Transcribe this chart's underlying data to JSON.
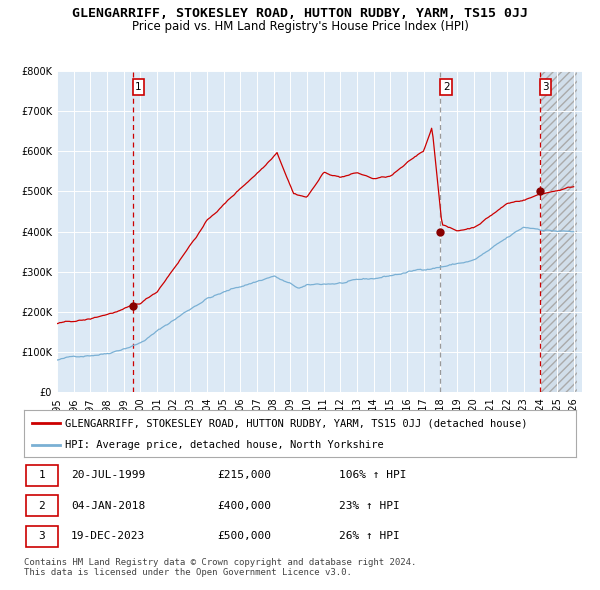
{
  "title": "GLENGARRIFF, STOKESLEY ROAD, HUTTON RUDBY, YARM, TS15 0JJ",
  "subtitle": "Price paid vs. HM Land Registry's House Price Index (HPI)",
  "ylim": [
    0,
    800000
  ],
  "yticks": [
    0,
    100000,
    200000,
    300000,
    400000,
    500000,
    600000,
    700000,
    800000
  ],
  "hpi_color": "#7ab0d4",
  "price_color": "#cc0000",
  "marker_color": "#880000",
  "bg_color": "#dce9f5",
  "grid_color": "#ffffff",
  "vline_color_red": "#cc0000",
  "vline_color_gray": "#999999",
  "sale_year_nums": [
    1999.54,
    2018.01,
    2023.96
  ],
  "sale_prices": [
    215000,
    400000,
    500000
  ],
  "sale_labels": [
    "1",
    "2",
    "3"
  ],
  "legend_label_red": "GLENGARRIFF, STOKESLEY ROAD, HUTTON RUDBY, YARM, TS15 0JJ (detached house)",
  "legend_label_blue": "HPI: Average price, detached house, North Yorkshire",
  "table_rows": [
    [
      "1",
      "20-JUL-1999",
      "£215,000",
      "106% ↑ HPI"
    ],
    [
      "2",
      "04-JAN-2018",
      "£400,000",
      "23% ↑ HPI"
    ],
    [
      "3",
      "19-DEC-2023",
      "£500,000",
      "26% ↑ HPI"
    ]
  ],
  "footer": "Contains HM Land Registry data © Crown copyright and database right 2024.\nThis data is licensed under the Open Government Licence v3.0.",
  "title_fontsize": 9.5,
  "subtitle_fontsize": 8.5,
  "tick_fontsize": 7,
  "legend_fontsize": 7.5,
  "table_fontsize": 8,
  "footer_fontsize": 6.5
}
